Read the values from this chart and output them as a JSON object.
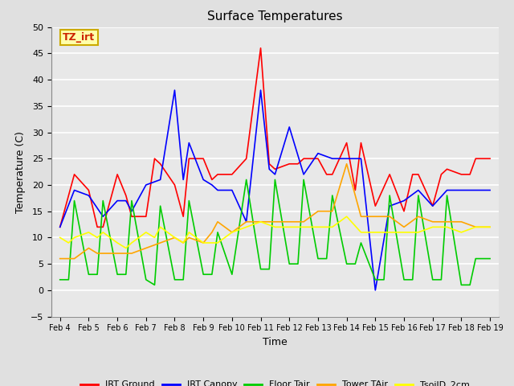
{
  "title": "Surface Temperatures",
  "xlabel": "Time",
  "ylabel": "Temperature (C)",
  "ylim": [
    -5,
    50
  ],
  "yticks": [
    -5,
    0,
    5,
    10,
    15,
    20,
    25,
    30,
    35,
    40,
    45,
    50
  ],
  "background_color": "#e0e0e0",
  "plot_bg_color": "#e8e8e8",
  "grid_color": "white",
  "annotation_text": "TZ_irt",
  "annotation_color": "#cc2200",
  "annotation_bg": "#ffffaa",
  "annotation_border": "#ccaa00",
  "series": {
    "IRT Ground": {
      "color": "red",
      "x": [
        4.0,
        4.5,
        5.0,
        5.3,
        5.5,
        6.0,
        6.3,
        6.5,
        7.0,
        7.3,
        7.5,
        8.0,
        8.3,
        8.5,
        9.0,
        9.3,
        9.5,
        10.0,
        10.5,
        11.0,
        11.3,
        11.5,
        12.0,
        12.3,
        12.5,
        13.0,
        13.3,
        13.5,
        14.0,
        14.3,
        14.5,
        15.0,
        15.5,
        16.0,
        16.3,
        16.5,
        17.0,
        17.3,
        17.5,
        18.0,
        18.3,
        18.5,
        19.0
      ],
      "y": [
        12,
        22,
        19,
        12,
        12,
        22,
        18,
        14,
        14,
        25,
        24,
        20,
        14,
        25,
        25,
        21,
        22,
        22,
        25,
        46,
        24,
        23,
        24,
        24,
        25,
        25,
        22,
        22,
        28,
        19,
        28,
        16,
        22,
        15,
        22,
        22,
        16,
        22,
        23,
        22,
        22,
        25,
        25
      ]
    },
    "IRT Canopy": {
      "color": "blue",
      "x": [
        4.0,
        4.5,
        5.0,
        5.5,
        6.0,
        6.3,
        6.5,
        7.0,
        7.5,
        8.0,
        8.3,
        8.5,
        9.0,
        9.3,
        9.5,
        10.0,
        10.5,
        11.0,
        11.3,
        11.5,
        12.0,
        12.5,
        13.0,
        13.5,
        14.0,
        14.5,
        15.0,
        15.5,
        16.0,
        16.5,
        17.0,
        17.5,
        18.0,
        18.5,
        19.0
      ],
      "y": [
        12,
        19,
        18,
        14,
        17,
        17,
        15,
        20,
        21,
        38,
        21,
        28,
        21,
        20,
        19,
        19,
        13,
        38,
        23,
        22,
        31,
        22,
        26,
        25,
        25,
        25,
        0,
        16,
        17,
        19,
        16,
        19,
        19,
        19,
        19
      ]
    },
    "Floor Tair": {
      "color": "#00cc00",
      "x": [
        4.0,
        4.3,
        4.5,
        5.0,
        5.3,
        5.5,
        6.0,
        6.3,
        6.5,
        7.0,
        7.3,
        7.5,
        8.0,
        8.3,
        8.5,
        9.0,
        9.3,
        9.5,
        10.0,
        10.5,
        11.0,
        11.3,
        11.5,
        12.0,
        12.3,
        12.5,
        13.0,
        13.3,
        13.5,
        14.0,
        14.3,
        14.5,
        15.0,
        15.3,
        15.5,
        16.0,
        16.3,
        16.5,
        17.0,
        17.3,
        17.5,
        18.0,
        18.3,
        18.5,
        19.0
      ],
      "y": [
        2,
        2,
        17,
        3,
        3,
        17,
        3,
        3,
        17,
        2,
        1,
        16,
        2,
        2,
        17,
        3,
        3,
        11,
        3,
        21,
        4,
        4,
        21,
        5,
        5,
        21,
        6,
        6,
        18,
        5,
        5,
        9,
        2,
        2,
        18,
        2,
        2,
        18,
        2,
        2,
        18,
        1,
        1,
        6,
        6
      ]
    },
    "Tower TAir": {
      "color": "orange",
      "x": [
        4.0,
        4.5,
        5.0,
        5.3,
        5.5,
        6.0,
        6.3,
        6.5,
        7.0,
        7.5,
        8.0,
        8.3,
        8.5,
        9.0,
        9.3,
        9.5,
        10.0,
        10.5,
        11.0,
        11.5,
        12.0,
        12.5,
        13.0,
        13.5,
        14.0,
        14.5,
        15.0,
        15.5,
        16.0,
        16.5,
        17.0,
        17.5,
        18.0,
        18.5,
        19.0
      ],
      "y": [
        6,
        6,
        8,
        7,
        7,
        7,
        7,
        7,
        8,
        9,
        10,
        9,
        10,
        9,
        11,
        13,
        11,
        13,
        13,
        13,
        13,
        13,
        15,
        15,
        24,
        14,
        14,
        14,
        12,
        14,
        13,
        13,
        13,
        12,
        12
      ]
    },
    "TsoilD_2cm": {
      "color": "yellow",
      "x": [
        4.0,
        4.3,
        4.5,
        5.0,
        5.3,
        5.5,
        6.0,
        6.3,
        6.5,
        7.0,
        7.3,
        7.5,
        8.0,
        8.3,
        8.5,
        9.0,
        9.3,
        9.5,
        10.0,
        10.5,
        11.0,
        11.5,
        12.0,
        12.5,
        13.0,
        13.5,
        14.0,
        14.5,
        15.0,
        15.5,
        16.0,
        16.5,
        17.0,
        17.5,
        18.0,
        18.5,
        19.0
      ],
      "y": [
        10,
        9,
        10,
        11,
        10,
        11,
        9,
        8,
        9,
        11,
        10,
        12,
        10,
        9,
        11,
        9,
        9,
        9,
        11,
        12,
        13,
        12,
        12,
        12,
        12,
        12,
        14,
        11,
        11,
        11,
        11,
        11,
        12,
        12,
        11,
        12,
        12
      ]
    }
  },
  "xtick_labels": [
    "Feb 4",
    "Feb 5",
    "Feb 6",
    "Feb 7",
    "Feb 8",
    "Feb 9",
    "Feb 10",
    "Feb 11",
    "Feb 12",
    "Feb 13",
    "Feb 14",
    "Feb 15",
    "Feb 16",
    "Feb 17",
    "Feb 18",
    "Feb 19"
  ],
  "xtick_positions": [
    4,
    5,
    6,
    7,
    8,
    9,
    10,
    11,
    12,
    13,
    14,
    15,
    16,
    17,
    18,
    19
  ],
  "xlim": [
    3.7,
    19.3
  ]
}
